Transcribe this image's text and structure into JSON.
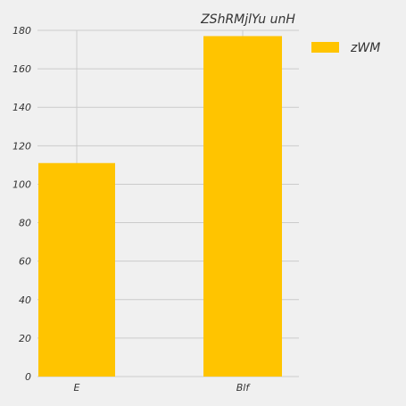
{
  "chart_data": {
    "type": "bar",
    "title": "ZShRMjlYu unH",
    "xlabel": "",
    "ylabel": "",
    "categories": [
      "E",
      "Blf"
    ],
    "series": [
      {
        "name": "zWM",
        "values": [
          111,
          177
        ],
        "color": "#ffc400"
      }
    ],
    "ylim": [
      0,
      180
    ],
    "yticks": [
      0,
      20,
      40,
      60,
      80,
      100,
      120,
      140,
      160,
      180
    ],
    "grid": true,
    "legend": "top-right",
    "colors": {
      "background": "#f0f0f0",
      "grid": "#cbcbcb",
      "text": "#333333"
    }
  }
}
